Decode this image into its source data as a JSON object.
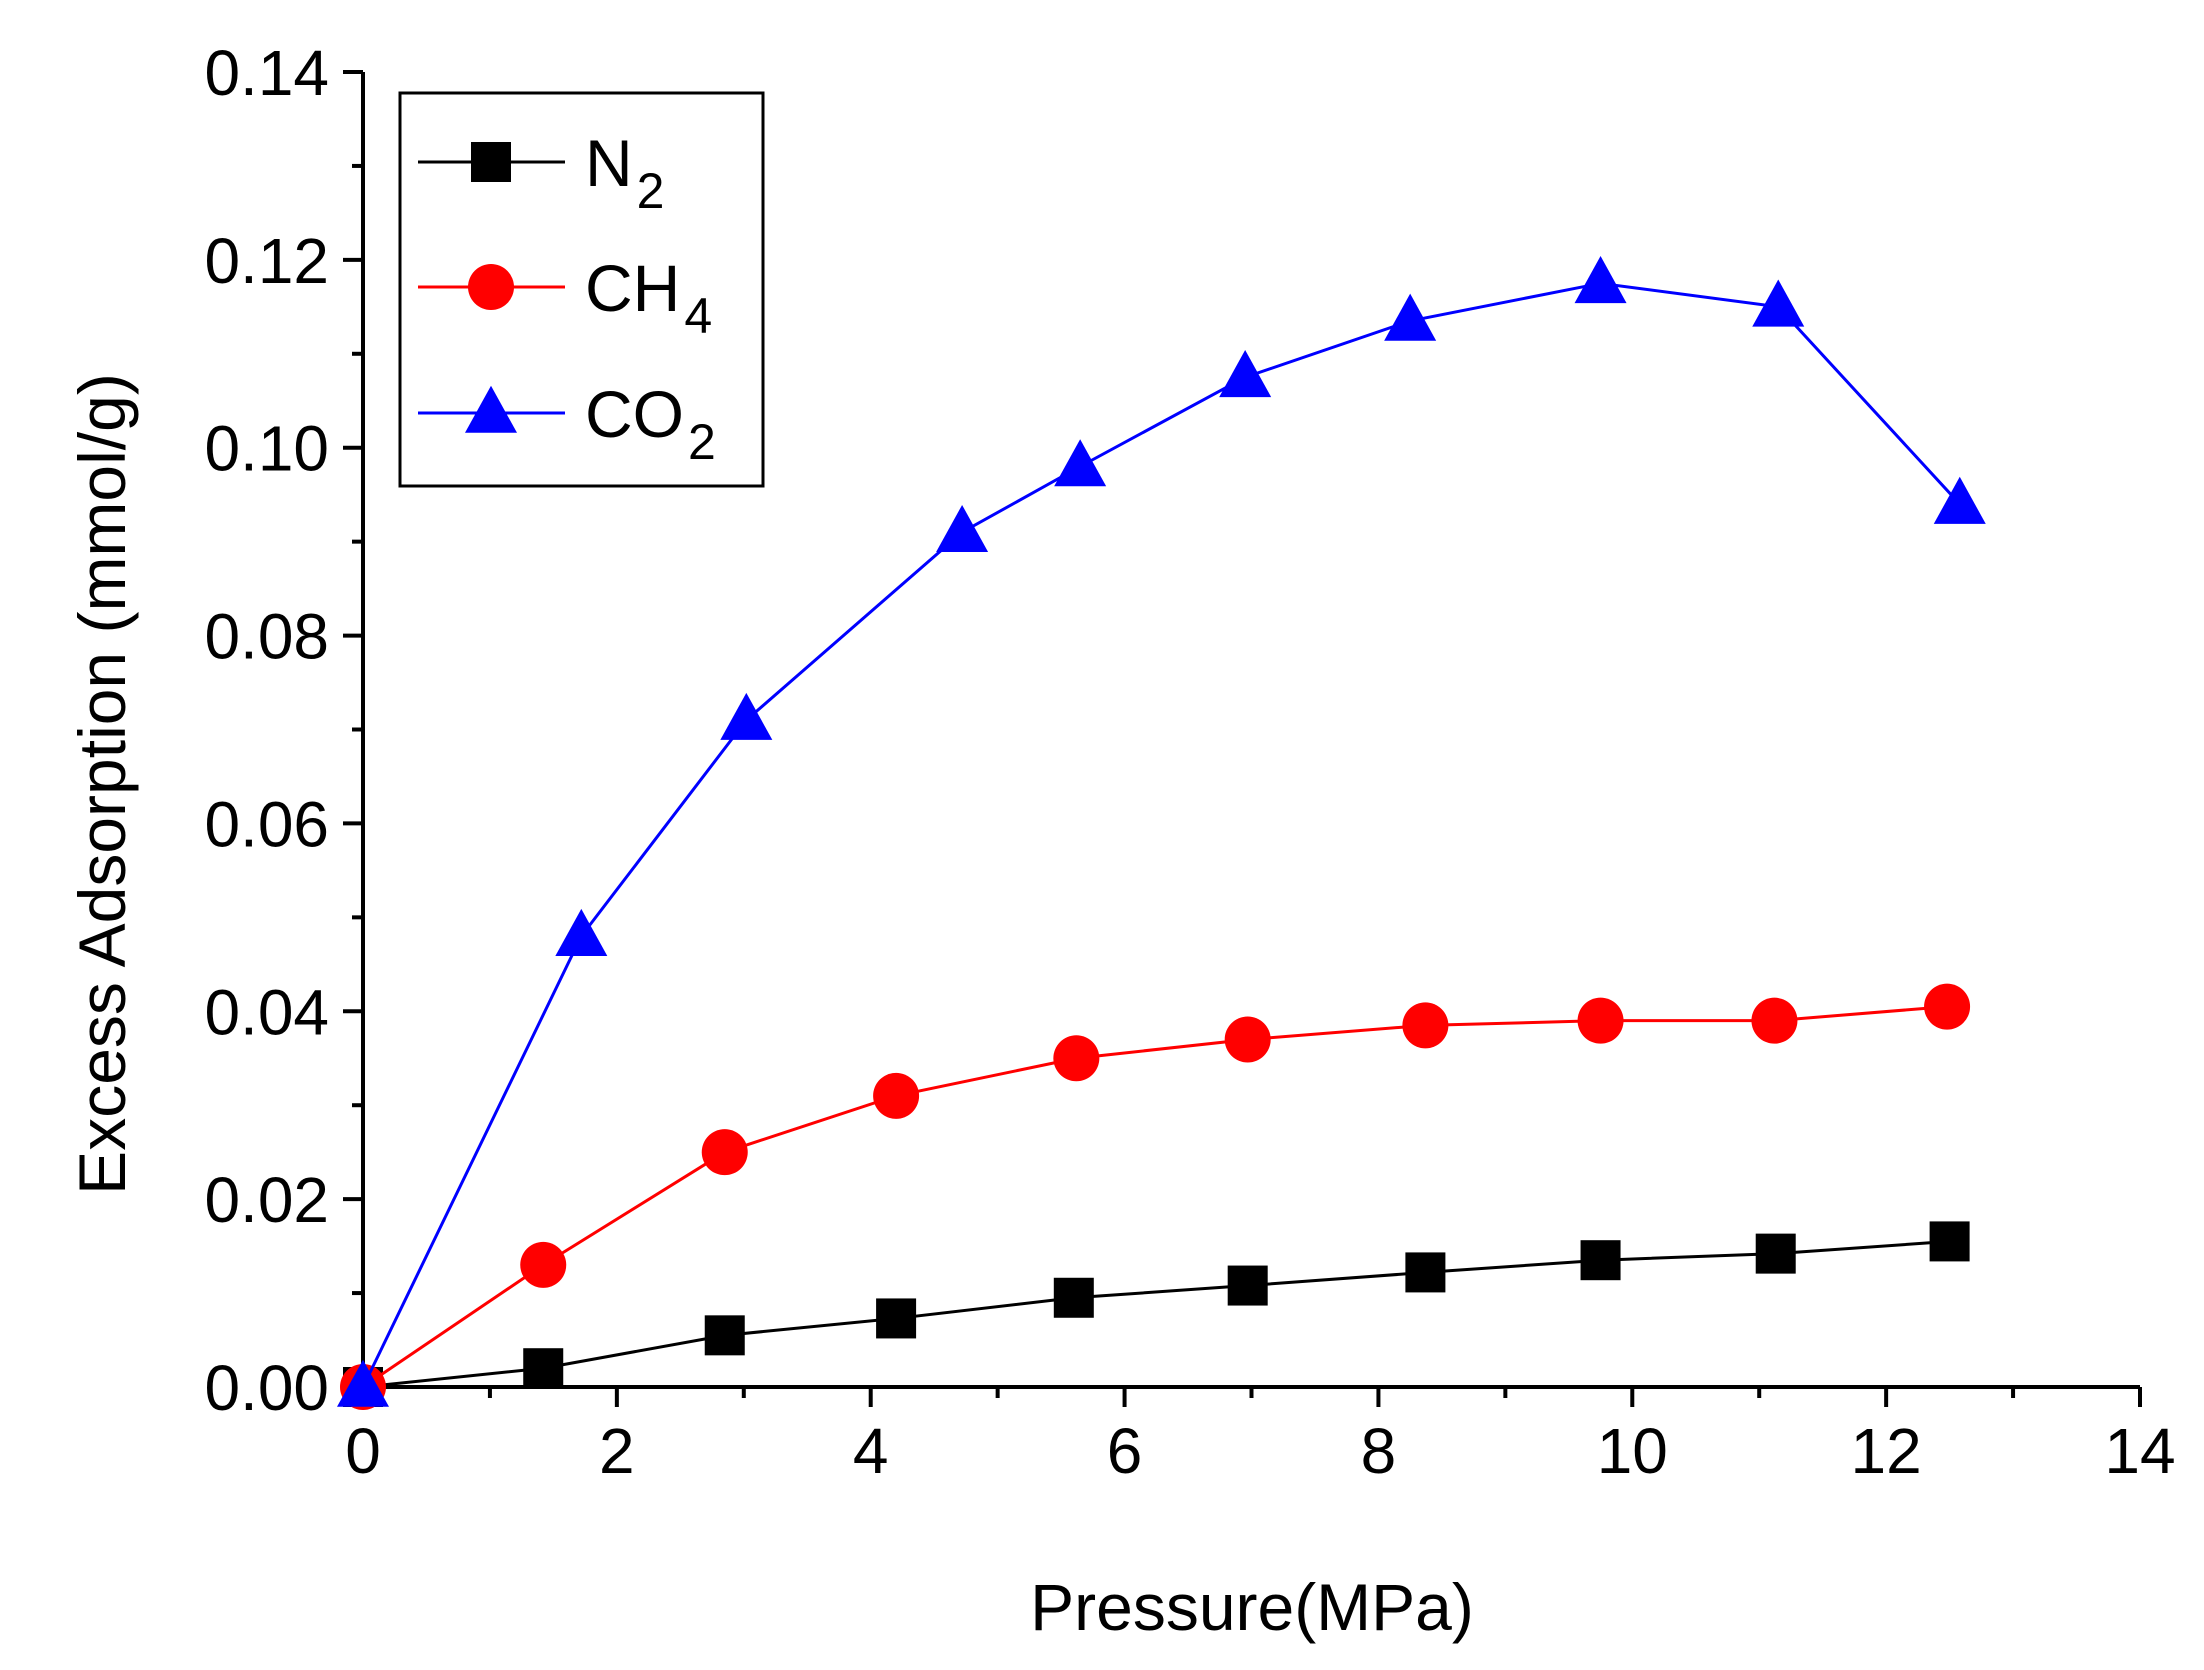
{
  "chart_data": {
    "type": "line",
    "title": "",
    "xlabel": "Pressure(MPa)",
    "ylabel": "Excess Adsorption (mmol/g)",
    "xlim": [
      0,
      14
    ],
    "ylim": [
      0,
      0.14
    ],
    "x_ticks": [
      "0",
      "2",
      "4",
      "6",
      "8",
      "10",
      "12",
      "14"
    ],
    "y_ticks": [
      "0.00",
      "0.02",
      "0.04",
      "0.06",
      "0.08",
      "0.10",
      "0.12",
      "0.14"
    ],
    "grid": false,
    "legend_position": "top-left",
    "series": [
      {
        "name": "N2",
        "legend_main": "N",
        "legend_sub": "2",
        "color": "#000000",
        "marker": "square",
        "x": [
          0.0,
          1.42,
          2.85,
          4.2,
          5.6,
          6.97,
          8.37,
          9.75,
          11.13,
          12.5
        ],
        "y": [
          0.0,
          0.002,
          0.0055,
          0.0073,
          0.0095,
          0.0108,
          0.0122,
          0.0135,
          0.0142,
          0.0155
        ]
      },
      {
        "name": "CH4",
        "legend_main": "CH",
        "legend_sub": "4",
        "color": "#ff0000",
        "marker": "circle",
        "x": [
          0.0,
          1.42,
          2.85,
          4.2,
          5.62,
          6.97,
          8.37,
          9.75,
          11.12,
          12.48
        ],
        "y": [
          0.0,
          0.013,
          0.025,
          0.031,
          0.035,
          0.037,
          0.0385,
          0.039,
          0.039,
          0.0405
        ]
      },
      {
        "name": "CO2",
        "legend_main": "CO",
        "legend_sub": "2",
        "color": "#0000ff",
        "marker": "triangle",
        "x": [
          0.0,
          1.72,
          3.02,
          4.72,
          5.65,
          6.95,
          8.25,
          9.75,
          11.15,
          12.58
        ],
        "y": [
          0.0,
          0.048,
          0.071,
          0.091,
          0.098,
          0.1075,
          0.1135,
          0.1175,
          0.115,
          0.094
        ]
      }
    ]
  }
}
